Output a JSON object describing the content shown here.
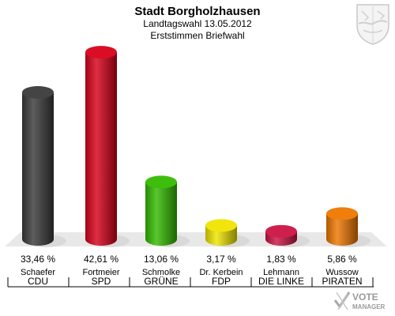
{
  "header": {
    "title": "Stadt Borgholzhausen",
    "subtitle": "Landtagswahl 13.05.2012",
    "subtitle2": "Erststimmen Briefwahl"
  },
  "logo": {
    "line1": "VOTE",
    "line2": "MANAGER"
  },
  "chart_data": {
    "type": "bar",
    "title": "Stadt Borgholzhausen",
    "subtitle": "Landtagswahl 13.05.2012 Erststimmen Briefwahl",
    "categories": [
      "CDU",
      "SPD",
      "GRÜNE",
      "FDP",
      "DIE LINKE",
      "PIRATEN"
    ],
    "candidates": [
      "Schaefer",
      "Fortmeier",
      "Schmolke",
      "Dr. Kerbein",
      "Lehmann",
      "Wussow"
    ],
    "values": [
      33.46,
      42.61,
      13.06,
      3.17,
      1.83,
      5.86
    ],
    "labels": [
      "33,46 %",
      "42,61 %",
      "13,06 %",
      "3,17 %",
      "1,83 %",
      "5,86 %"
    ],
    "colors": [
      "#3a3a3a",
      "#d8001a",
      "#33bb00",
      "#f0e400",
      "#cc1444",
      "#ee7700"
    ],
    "ylim": [
      0,
      45
    ],
    "grid": false
  }
}
